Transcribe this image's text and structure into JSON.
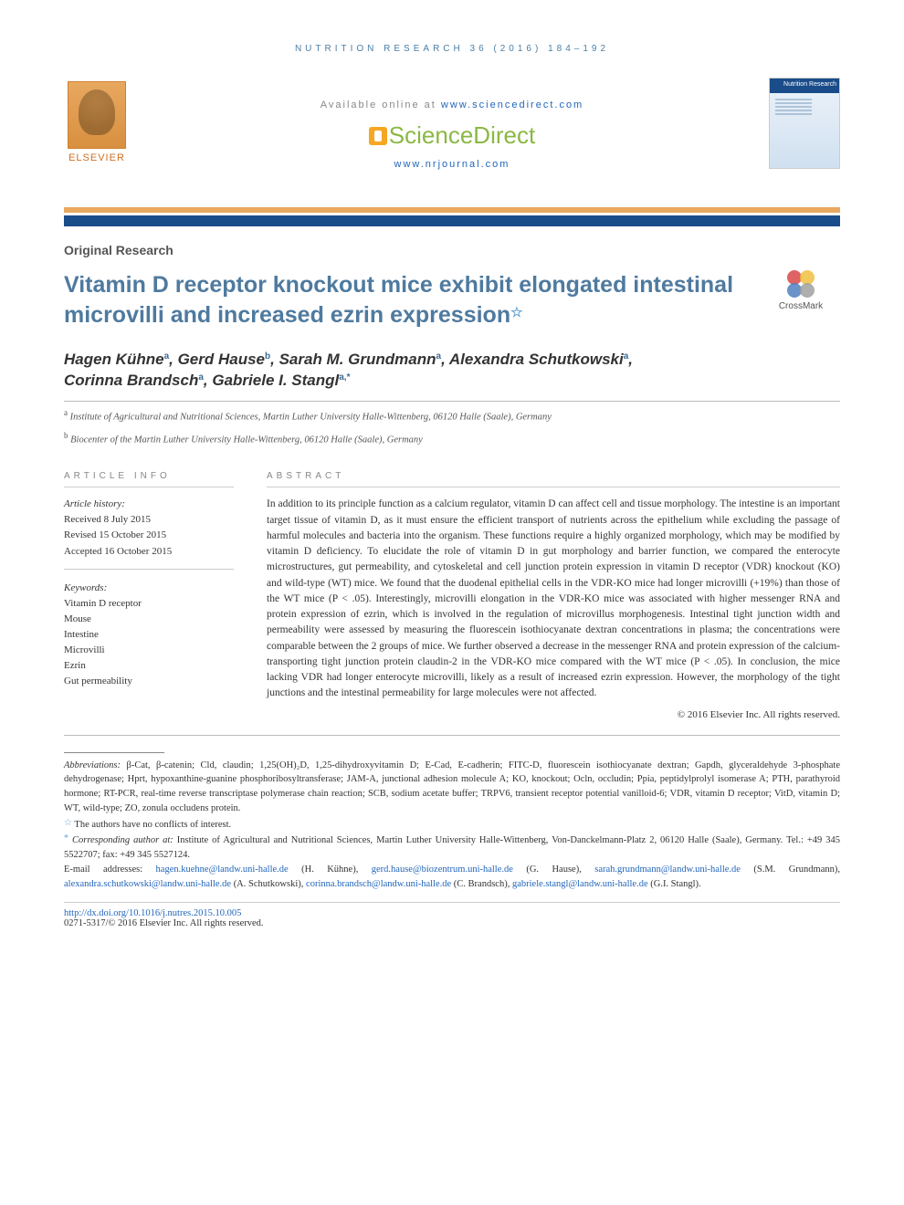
{
  "header": {
    "running": "NUTRITION RESEARCH 36 (2016) 184–192",
    "available_prefix": "Available online at ",
    "available_link": "www.sciencedirect.com",
    "sciencedirect": "ScienceDirect",
    "journal_link": "www.nrjournal.com",
    "cover_title": "Nutrition Research",
    "elsevier_label": "ELSEVIER"
  },
  "article": {
    "type": "Original Research",
    "title": "Vitamin D receptor knockout mice exhibit elongated intestinal microvilli and increased ezrin expression",
    "star": "☆",
    "crossmark": "CrossMark"
  },
  "authors": [
    {
      "name": "Hagen Kühne",
      "aff": "a"
    },
    {
      "name": "Gerd Hause",
      "aff": "b"
    },
    {
      "name": "Sarah M. Grundmann",
      "aff": "a"
    },
    {
      "name": "Alexandra Schutkowski",
      "aff": "a"
    },
    {
      "name": "Corinna Brandsch",
      "aff": "a"
    },
    {
      "name": "Gabriele I. Stangl",
      "aff": "a,*"
    }
  ],
  "affiliations": [
    {
      "sup": "a",
      "text": "Institute of Agricultural and Nutritional Sciences, Martin Luther University Halle-Wittenberg, 06120 Halle (Saale), Germany"
    },
    {
      "sup": "b",
      "text": "Biocenter of the Martin Luther University Halle-Wittenberg, 06120 Halle (Saale), Germany"
    }
  ],
  "info": {
    "heading": "ARTICLE INFO",
    "history_label": "Article history:",
    "received": "Received 8 July 2015",
    "revised": "Revised 15 October 2015",
    "accepted": "Accepted 16 October 2015",
    "keywords_label": "Keywords:",
    "keywords": [
      "Vitamin D receptor",
      "Mouse",
      "Intestine",
      "Microvilli",
      "Ezrin",
      "Gut permeability"
    ]
  },
  "abstract": {
    "heading": "ABSTRACT",
    "body": "In addition to its principle function as a calcium regulator, vitamin D can affect cell and tissue morphology. The intestine is an important target tissue of vitamin D, as it must ensure the efficient transport of nutrients across the epithelium while excluding the passage of harmful molecules and bacteria into the organism. These functions require a highly organized morphology, which may be modified by vitamin D deficiency. To elucidate the role of vitamin D in gut morphology and barrier function, we compared the enterocyte microstructures, gut permeability, and cytoskeletal and cell junction protein expression in vitamin D receptor (VDR) knockout (KO) and wild-type (WT) mice. We found that the duodenal epithelial cells in the VDR-KO mice had longer microvilli (+19%) than those of the WT mice (P < .05). Interestingly, microvilli elongation in the VDR-KO mice was associated with higher messenger RNA and protein expression of ezrin, which is involved in the regulation of microvillus morphogenesis. Intestinal tight junction width and permeability were assessed by measuring the fluorescein isothiocyanate dextran concentrations in plasma; the concentrations were comparable between the 2 groups of mice. We further observed a decrease in the messenger RNA and protein expression of the calcium-transporting tight junction protein claudin-2 in the VDR-KO mice compared with the WT mice (P < .05). In conclusion, the mice lacking VDR had longer enterocyte microvilli, likely as a result of increased ezrin expression. However, the morphology of the tight junctions and the intestinal permeability for large molecules were not affected.",
    "copyright": "© 2016 Elsevier Inc. All rights reserved."
  },
  "footnotes": {
    "abbr_label": "Abbreviations:",
    "abbr_text": " β-Cat, β-catenin; Cld, claudin; 1,25(OH)₂D, 1,25-dihydroxyvitamin D; E-Cad, E-cadherin; FITC-D, fluorescein isothiocyanate dextran; Gapdh, glyceraldehyde 3-phosphate dehydrogenase; Hprt, hypoxanthine-guanine phosphoribosyltransferase; JAM-A, junctional adhesion molecule A; KO, knockout; Ocln, occludin; Ppia, peptidylprolyl isomerase A; PTH, parathyroid hormone; RT-PCR, real-time reverse transcriptase polymerase chain reaction; SCB, sodium acetate buffer; TRPV6, transient receptor potential vanilloid-6; VDR, vitamin D receptor; VitD, vitamin D; WT, wild-type; ZO, zonula occludens protein.",
    "conflict": "The authors have no conflicts of interest.",
    "corr_label": "Corresponding author at:",
    "corr_text": " Institute of Agricultural and Nutritional Sciences, Martin Luther University Halle-Wittenberg, Von-Danckelmann-Platz 2, 06120 Halle (Saale), Germany. Tel.: +49 345 5522707; fax: +49 345 5527124.",
    "email_label": "E-mail addresses: ",
    "emails": [
      {
        "addr": "hagen.kuehne@landw.uni-halle.de",
        "who": " (H. Kühne), "
      },
      {
        "addr": "gerd.hause@biozentrum.uni-halle.de",
        "who": " (G. Hause), "
      },
      {
        "addr": "sarah.grundmann@landw.uni-halle.de",
        "who": " (S.M. Grundmann), "
      },
      {
        "addr": "alexandra.schutkowski@landw.uni-halle.de",
        "who": " (A. Schutkowski), "
      },
      {
        "addr": "corinna.brandsch@landw.uni-halle.de",
        "who": " (C. Brandsch), "
      },
      {
        "addr": "gabriele.stangl@landw.uni-halle.de",
        "who": " (G.I. Stangl)."
      }
    ]
  },
  "doi": {
    "link": "http://dx.doi.org/10.1016/j.nutres.2015.10.005",
    "issn": "0271-5317/© 2016 Elsevier Inc. All rights reserved."
  },
  "colors": {
    "accent_blue": "#4f7a9f",
    "link_blue": "#2266bb",
    "bar_dark": "#1a4c8a",
    "bar_orange": "#e8a860",
    "sd_green": "#8bb843"
  }
}
